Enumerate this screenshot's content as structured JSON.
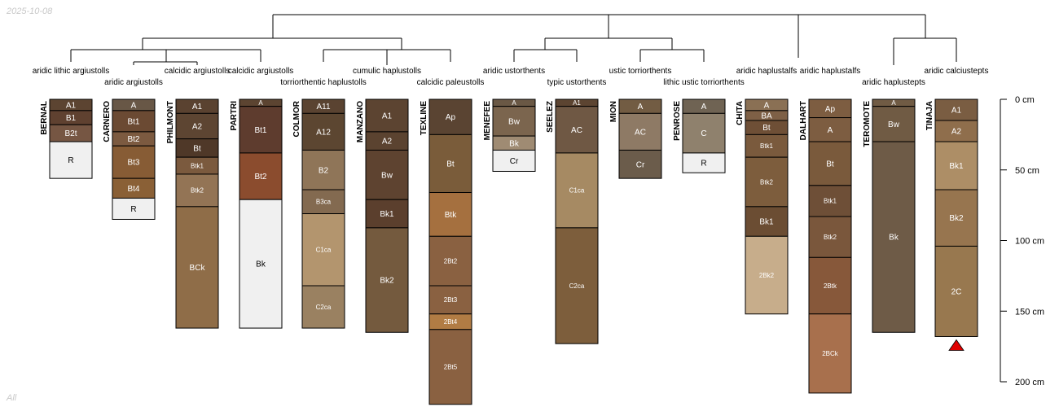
{
  "date_stamp": "2025-10-08",
  "subset_label": "All",
  "axis": {
    "unit": "cm",
    "max_depth": 200,
    "ticks": [
      {
        "depth": 0,
        "label": "0 cm"
      },
      {
        "depth": 50,
        "label": "50 cm"
      },
      {
        "depth": 100,
        "label": "100 cm"
      },
      {
        "depth": 150,
        "label": "150 cm"
      },
      {
        "depth": 200,
        "label": "200 cm"
      }
    ]
  },
  "profiles": [
    {
      "name": "BERNAL",
      "taxon": "aridic lithic argiustolls",
      "horizons": [
        {
          "name": "A1",
          "top": 0,
          "bottom": 8,
          "color": "#5c4431"
        },
        {
          "name": "B1",
          "top": 8,
          "bottom": 18,
          "color": "#5f4130"
        },
        {
          "name": "B2t",
          "top": 18,
          "bottom": 30,
          "color": "#765643"
        },
        {
          "name": "R",
          "top": 30,
          "bottom": 56,
          "color": "#f0f0f0"
        }
      ]
    },
    {
      "name": "CARNERO",
      "taxon": "aridic argiustolls",
      "horizons": [
        {
          "name": "A",
          "top": 0,
          "bottom": 8,
          "color": "#685746"
        },
        {
          "name": "Bt1",
          "top": 8,
          "bottom": 23,
          "color": "#6b4a33"
        },
        {
          "name": "Bt2",
          "top": 23,
          "bottom": 33,
          "color": "#7c5a40"
        },
        {
          "name": "Bt3",
          "top": 33,
          "bottom": 56,
          "color": "#875c35"
        },
        {
          "name": "Bt4",
          "top": 56,
          "bottom": 70,
          "color": "#8a6036"
        },
        {
          "name": "R",
          "top": 70,
          "bottom": 85,
          "color": "#f0f0f0"
        }
      ]
    },
    {
      "name": "PHILMONT",
      "taxon": "calcidic argiustolls",
      "horizons": [
        {
          "name": "A1",
          "top": 0,
          "bottom": 10,
          "color": "#5a4230"
        },
        {
          "name": "A2",
          "top": 10,
          "bottom": 28,
          "color": "#5d4532"
        },
        {
          "name": "Bt",
          "top": 28,
          "bottom": 41,
          "color": "#4f3828"
        },
        {
          "name": "Btk1",
          "top": 41,
          "bottom": 53,
          "color": "#7b5a3e"
        },
        {
          "name": "Btk2",
          "top": 53,
          "bottom": 76,
          "color": "#937455"
        },
        {
          "name": "BCk",
          "top": 76,
          "bottom": 162,
          "color": "#8f6d48"
        }
      ]
    },
    {
      "name": "PARTRI",
      "taxon": "calcidic argiustolls",
      "horizons": [
        {
          "name": "A",
          "top": 0,
          "bottom": 5,
          "color": "#5c4431"
        },
        {
          "name": "Bt1",
          "top": 5,
          "bottom": 38,
          "color": "#5e3c2e"
        },
        {
          "name": "Bt2",
          "top": 38,
          "bottom": 71,
          "color": "#8b4c2e"
        },
        {
          "name": "Bk",
          "top": 71,
          "bottom": 162,
          "color": "#f0f0f0"
        }
      ]
    },
    {
      "name": "COLMOR",
      "taxon": "torriorthentic haplustolls",
      "horizons": [
        {
          "name": "A11",
          "top": 0,
          "bottom": 10,
          "color": "#5a4331"
        },
        {
          "name": "A12",
          "top": 10,
          "bottom": 36,
          "color": "#5c4631"
        },
        {
          "name": "B2",
          "top": 36,
          "bottom": 64,
          "color": "#8f7558"
        },
        {
          "name": "B3ca",
          "top": 64,
          "bottom": 81,
          "color": "#836a50"
        },
        {
          "name": "C1ca",
          "top": 81,
          "bottom": 132,
          "color": "#b3956e"
        },
        {
          "name": "C2ca",
          "top": 132,
          "bottom": 162,
          "color": "#9a8161"
        }
      ]
    },
    {
      "name": "MANZANO",
      "taxon": "cumulic haplustolls",
      "horizons": [
        {
          "name": "A1",
          "top": 0,
          "bottom": 23,
          "color": "#5c4431"
        },
        {
          "name": "A2",
          "top": 23,
          "bottom": 36,
          "color": "#5b4330"
        },
        {
          "name": "Bw",
          "top": 36,
          "bottom": 71,
          "color": "#5e4330"
        },
        {
          "name": "Bk1",
          "top": 71,
          "bottom": 91,
          "color": "#5b3f2d"
        },
        {
          "name": "Bk2",
          "top": 91,
          "bottom": 165,
          "color": "#745a3e"
        }
      ]
    },
    {
      "name": "TEXLINE",
      "taxon": "calcidic paleustolls",
      "horizons": [
        {
          "name": "Ap",
          "top": 0,
          "bottom": 25,
          "color": "#5a4432"
        },
        {
          "name": "Bt",
          "top": 25,
          "bottom": 66,
          "color": "#7a5c3a"
        },
        {
          "name": "Btk",
          "top": 66,
          "bottom": 97,
          "color": "#a5703f"
        },
        {
          "name": "2Bt2",
          "top": 97,
          "bottom": 132,
          "color": "#8a6141"
        },
        {
          "name": "2Bt3",
          "top": 132,
          "bottom": 152,
          "color": "#8a6141"
        },
        {
          "name": "2Bt4",
          "top": 152,
          "bottom": 163,
          "color": "#b17c44"
        },
        {
          "name": "2Bt5",
          "top": 163,
          "bottom": 216,
          "color": "#8a6141"
        }
      ]
    },
    {
      "name": "MENEFEE",
      "taxon": "aridic ustorthents",
      "horizons": [
        {
          "name": "A",
          "top": 0,
          "bottom": 5,
          "color": "#6a5845"
        },
        {
          "name": "Bw",
          "top": 5,
          "bottom": 26,
          "color": "#7b654e"
        },
        {
          "name": "Bk",
          "top": 26,
          "bottom": 36,
          "color": "#9f8b73"
        },
        {
          "name": "Cr",
          "top": 36,
          "bottom": 51,
          "color": "#f0f0f0"
        }
      ]
    },
    {
      "name": "SEELEZ",
      "taxon": "typic ustorthents",
      "horizons": [
        {
          "name": "A1",
          "top": 0,
          "bottom": 5,
          "color": "#5c4431"
        },
        {
          "name": "AC",
          "top": 5,
          "bottom": 38,
          "color": "#6f5844"
        },
        {
          "name": "C1ca",
          "top": 38,
          "bottom": 91,
          "color": "#a68a63"
        },
        {
          "name": "C2ca",
          "top": 91,
          "bottom": 173,
          "color": "#7d5e3c"
        }
      ]
    },
    {
      "name": "MION",
      "taxon": "ustic torriorthents",
      "horizons": [
        {
          "name": "A",
          "top": 0,
          "bottom": 10,
          "color": "#725c43"
        },
        {
          "name": "AC",
          "top": 10,
          "bottom": 36,
          "color": "#8e7a65"
        },
        {
          "name": "Cr",
          "top": 36,
          "bottom": 56,
          "color": "#6b5c4b"
        }
      ]
    },
    {
      "name": "PENROSE",
      "taxon": "lithic ustic torriorthents",
      "horizons": [
        {
          "name": "A",
          "top": 0,
          "bottom": 10,
          "color": "#6f6353"
        },
        {
          "name": "C",
          "top": 10,
          "bottom": 38,
          "color": "#8f816d"
        },
        {
          "name": "R",
          "top": 38,
          "bottom": 52,
          "color": "#f0f0f0"
        }
      ]
    },
    {
      "name": "CHITA",
      "taxon": "aridic haplustalfs",
      "horizons": [
        {
          "name": "A",
          "top": 0,
          "bottom": 8,
          "color": "#8a7054"
        },
        {
          "name": "BA",
          "top": 8,
          "bottom": 15,
          "color": "#7e6046"
        },
        {
          "name": "Bt",
          "top": 15,
          "bottom": 25,
          "color": "#6e4f36"
        },
        {
          "name": "Btk1",
          "top": 25,
          "bottom": 41,
          "color": "#7a5a3d"
        },
        {
          "name": "Btk2",
          "top": 41,
          "bottom": 76,
          "color": "#7d5d3d"
        },
        {
          "name": "Bk1",
          "top": 76,
          "bottom": 97,
          "color": "#6b4d33"
        },
        {
          "name": "2Bk2",
          "top": 97,
          "bottom": 152,
          "color": "#c7ad8b"
        }
      ]
    },
    {
      "name": "DALHART",
      "taxon": "aridic haplustalfs",
      "horizons": [
        {
          "name": "Ap",
          "top": 0,
          "bottom": 13,
          "color": "#7d5d41"
        },
        {
          "name": "A",
          "top": 13,
          "bottom": 30,
          "color": "#7d5d41"
        },
        {
          "name": "Bt",
          "top": 30,
          "bottom": 61,
          "color": "#7a5a3c"
        },
        {
          "name": "Btk1",
          "top": 61,
          "bottom": 83,
          "color": "#6e4f37"
        },
        {
          "name": "Btk2",
          "top": 83,
          "bottom": 112,
          "color": "#7a573c"
        },
        {
          "name": "2Btk",
          "top": 112,
          "bottom": 152,
          "color": "#87583a"
        },
        {
          "name": "2BCk",
          "top": 152,
          "bottom": 208,
          "color": "#a8704d"
        }
      ]
    },
    {
      "name": "TEROMOTE",
      "taxon": "aridic haplustepts",
      "horizons": [
        {
          "name": "A",
          "top": 0,
          "bottom": 5,
          "color": "#705b44"
        },
        {
          "name": "Bw",
          "top": 5,
          "bottom": 30,
          "color": "#705b44"
        },
        {
          "name": "Bk",
          "top": 30,
          "bottom": 165,
          "color": "#6e5b47"
        }
      ]
    },
    {
      "name": "TINAJA",
      "taxon": "aridic calciustepts",
      "horizons": [
        {
          "name": "A1",
          "top": 0,
          "bottom": 15,
          "color": "#7a5d42"
        },
        {
          "name": "A2",
          "top": 15,
          "bottom": 30,
          "color": "#8f6e4c"
        },
        {
          "name": "Bk1",
          "top": 30,
          "bottom": 64,
          "color": "#ad8e66"
        },
        {
          "name": "Bk2",
          "top": 64,
          "bottom": 104,
          "color": "#97754f"
        },
        {
          "name": "2C",
          "top": 104,
          "bottom": 168,
          "color": "#98784f"
        }
      ],
      "bottom_marker": true
    }
  ]
}
